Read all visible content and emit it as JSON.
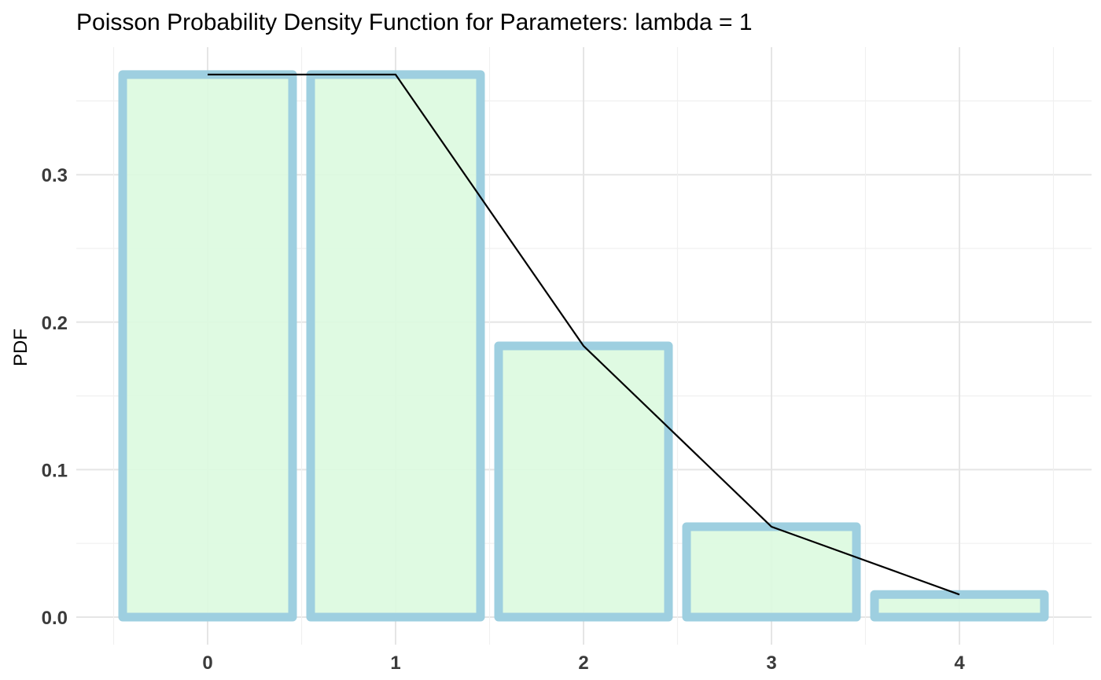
{
  "chart_data": {
    "type": "bar",
    "title": "Poisson Probability Density Function for Parameters:  lambda = 1",
    "xlabel": "",
    "ylabel": "PDF",
    "categories": [
      "0",
      "1",
      "2",
      "3",
      "4"
    ],
    "values": [
      0.3679,
      0.3679,
      0.1839,
      0.0613,
      0.0153
    ],
    "line_overlay": true,
    "ylim": [
      0,
      0.37
    ],
    "yticks": [
      0.0,
      0.1,
      0.2,
      0.3
    ],
    "ytick_labels": [
      "0.0",
      "0.1",
      "0.2",
      "0.3"
    ],
    "grid": true,
    "legend": "none",
    "colors": {
      "bar_fill": "#dcfadf",
      "bar_outline": "#9ecfe0",
      "line": "#000000",
      "grid": "#e5e5e5"
    }
  }
}
